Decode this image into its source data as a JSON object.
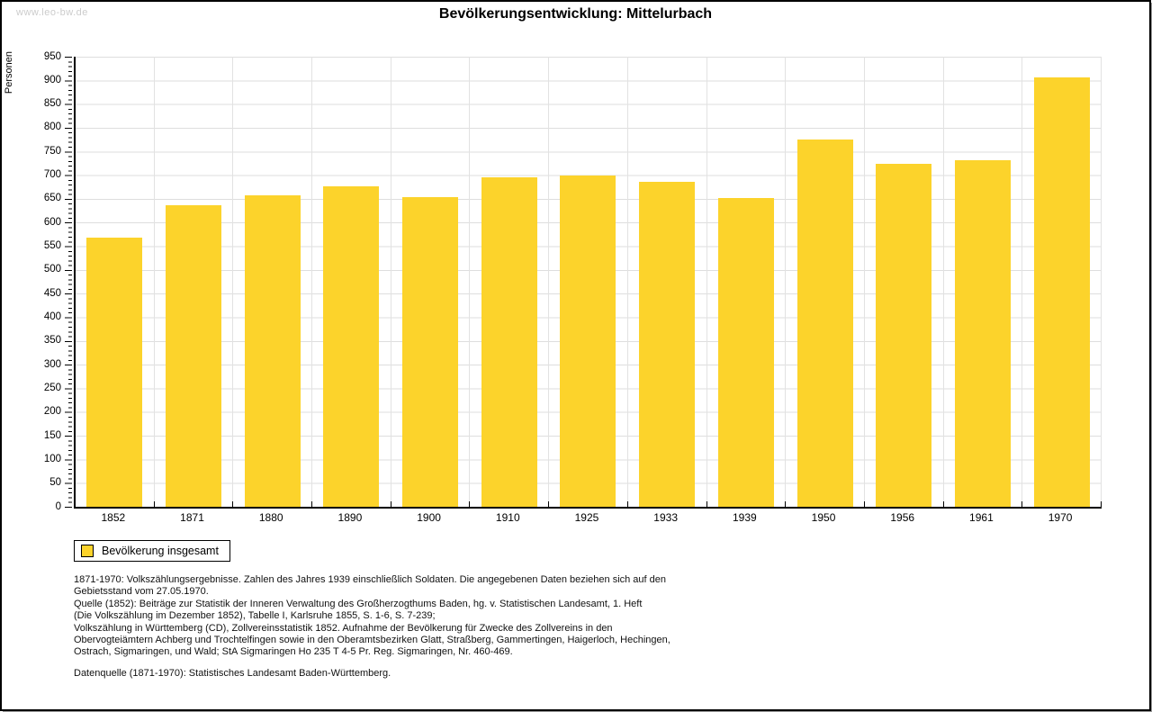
{
  "watermark": "www.leo-bw.de",
  "title": "Bevölkerungsentwicklung: Mittelurbach",
  "chart_data": {
    "type": "bar",
    "title": "Bevölkerungsentwicklung: Mittelurbach",
    "xlabel": "",
    "ylabel": "Personen",
    "ylim": [
      0,
      950
    ],
    "y_tick_step": 50,
    "y_minor_tick_step": 10,
    "grid": true,
    "bar_color": "#fcd32b",
    "categories": [
      "1852",
      "1871",
      "1880",
      "1890",
      "1900",
      "1910",
      "1925",
      "1933",
      "1939",
      "1950",
      "1956",
      "1961",
      "1970"
    ],
    "values": [
      568,
      636,
      657,
      677,
      654,
      696,
      699,
      685,
      652,
      776,
      724,
      731,
      906
    ],
    "legend": {
      "position": "bottom-left",
      "entries": [
        {
          "label": "Bevölkerung insgesamt",
          "color": "#fcd32b"
        }
      ]
    }
  },
  "source_note_lines": [
    "1871-1970: Volkszählungsergebnisse. Zahlen des Jahres 1939 einschließlich Soldaten. Die angegebenen Daten beziehen sich auf den",
    "Gebietsstand vom 27.05.1970.",
    "Quelle (1852): Beiträge zur Statistik der Inneren Verwaltung des Großherzogthums Baden, hg. v. Statistischen Landesamt, 1. Heft",
    "(Die Volkszählung im Dezember 1852), Tabelle I, Karlsruhe 1855, S. 1-6, S. 7-239;",
    "Volkszählung in Württemberg (CD), Zollvereinsstatistik 1852. Aufnahme der Bevölkerung für Zwecke des Zollvereins in den",
    "Obervogteiämtern Achberg und Trochtelfingen sowie in den Oberamtsbezirken Glatt, Straßberg, Gammertingen, Haigerloch, Hechingen,",
    "Ostrach, Sigmaringen, und Wald; StA Sigmaringen Ho 235 T 4-5 Pr. Reg. Sigmaringen, Nr. 460-469."
  ],
  "data_source_line": "Datenquelle (1871-1970): Statistisches Landesamt Baden-Württemberg."
}
